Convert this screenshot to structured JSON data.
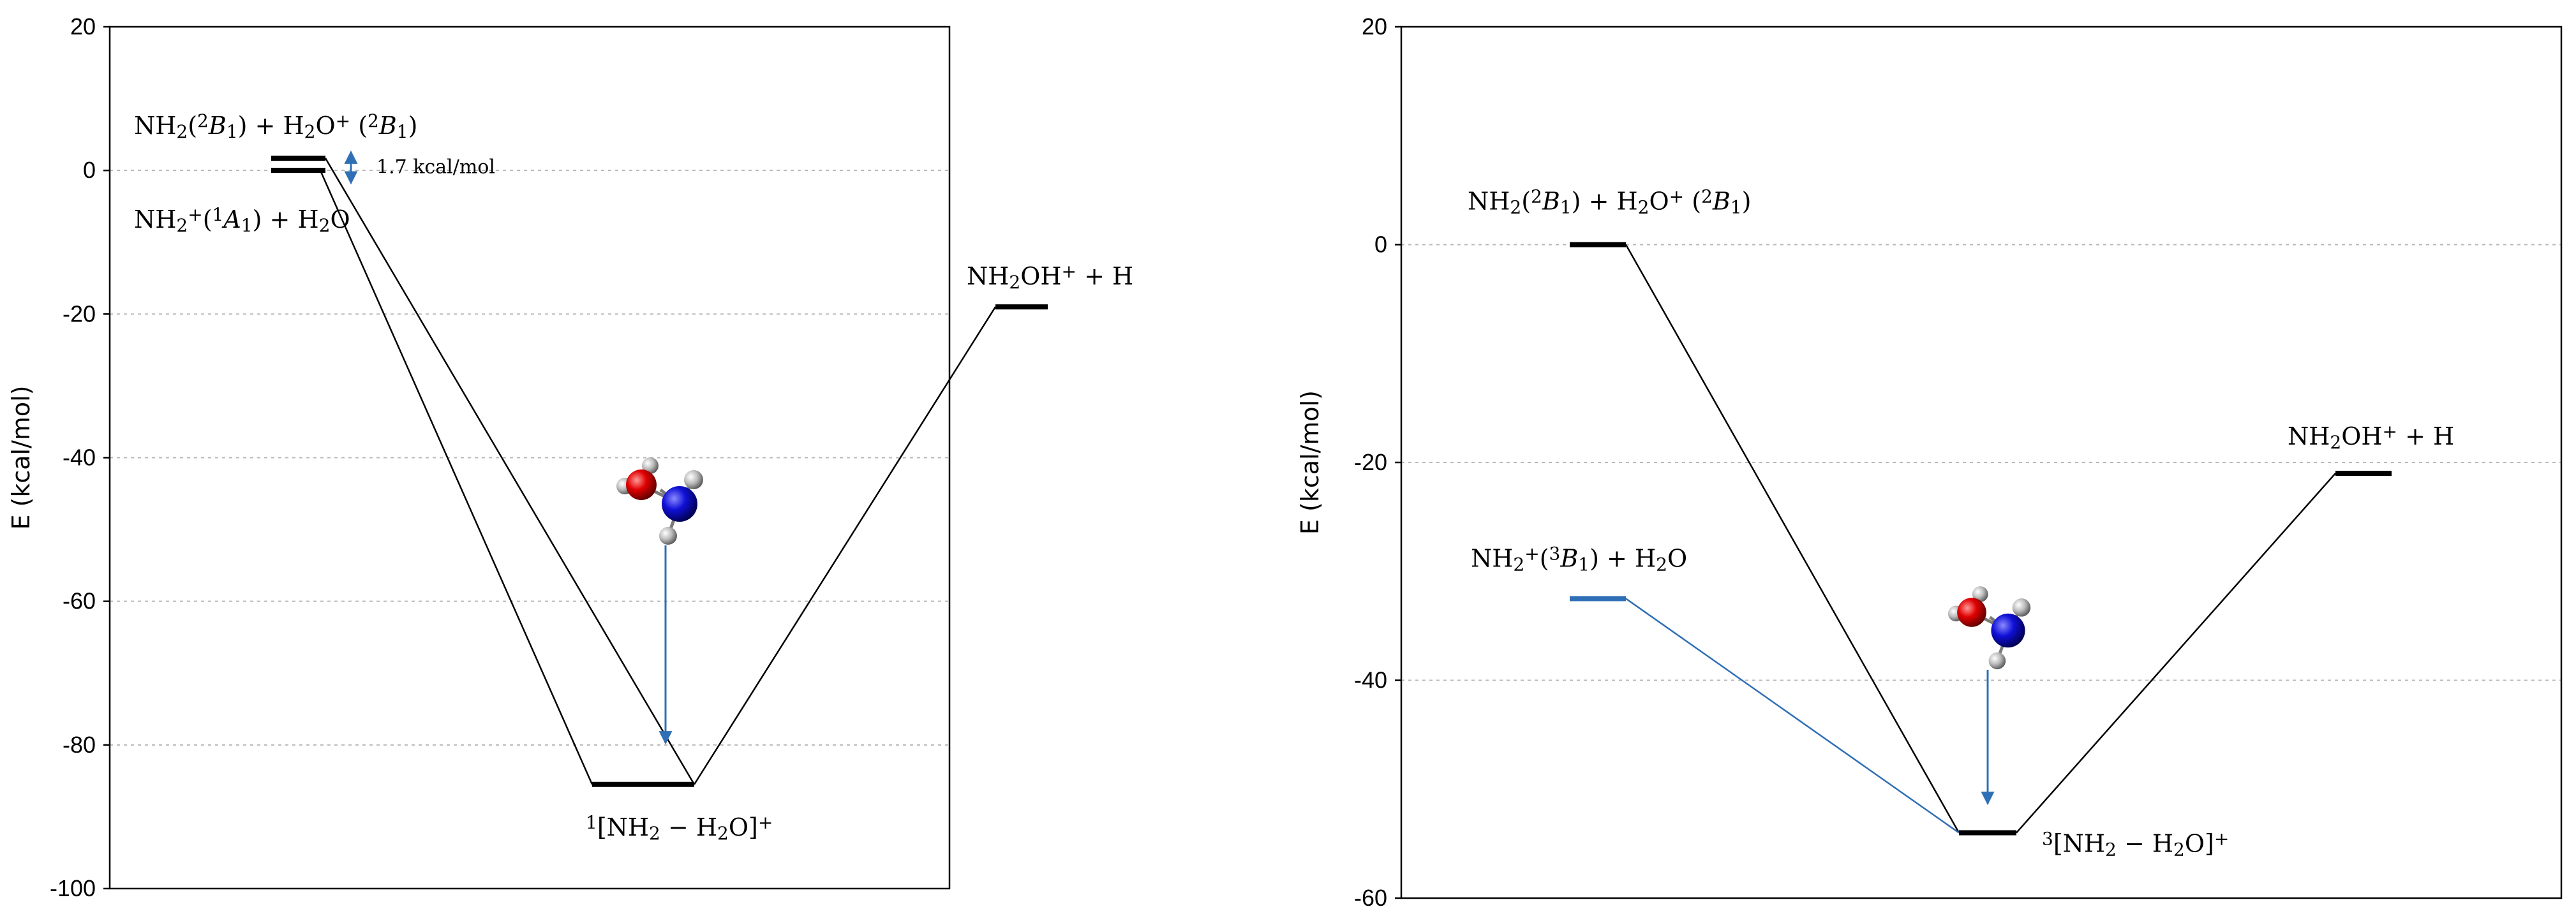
{
  "chart_data": [
    {
      "type": "line",
      "ylabel": "E (kcal/mol)",
      "ylim": [
        -100,
        20
      ],
      "yticks": [
        20,
        0,
        -20,
        -40,
        -60,
        -80,
        -100
      ],
      "grid": true,
      "levels": [
        {
          "id": "nh2_h2op",
          "energy": 1.7,
          "label": "NH₂(²B₁) + H₂O⁺ (²B₁)",
          "color": "#000000"
        },
        {
          "id": "nh2p_h2o",
          "energy": 0,
          "label": "NH₂⁺(¹A₁) + H₂O",
          "color": "#000000"
        },
        {
          "id": "complex",
          "energy": -85.5,
          "label": "¹[NH₂ − H₂O]⁺",
          "color": "#000000"
        },
        {
          "id": "products",
          "energy": -19,
          "label": "NH₂OH⁺ + H",
          "color": "#000000"
        }
      ],
      "annotations": [
        {
          "text": "1.7 kcal/mol",
          "between": [
            "nh2p_h2o",
            "nh2_h2op"
          ],
          "color": "#2f6fb5"
        }
      ],
      "molecule": [
        "oxygen-atom",
        "nitrogen-atom",
        "hydrogen-atom"
      ]
    },
    {
      "type": "line",
      "ylabel": "E (kcal/mol)",
      "ylim": [
        -60,
        20
      ],
      "yticks": [
        20,
        0,
        -20,
        -40,
        -60
      ],
      "grid": true,
      "levels": [
        {
          "id": "nh2_h2op",
          "energy": 0,
          "label": "NH₂(²B₁) + H₂O⁺ (²B₁)",
          "color": "#000000"
        },
        {
          "id": "nh2p_h2o",
          "energy": -32.5,
          "label": "NH₂⁺(³B₁) + H₂O",
          "color": "#2f6fb5"
        },
        {
          "id": "complex",
          "energy": -54,
          "label": "³[NH₂ − H₂O]⁺",
          "color": "#000000"
        },
        {
          "id": "products",
          "energy": -21,
          "label": "NH₂OH⁺ + H",
          "color": "#000000"
        }
      ],
      "molecule": [
        "oxygen-atom",
        "nitrogen-atom",
        "hydrogen-atom"
      ]
    }
  ]
}
